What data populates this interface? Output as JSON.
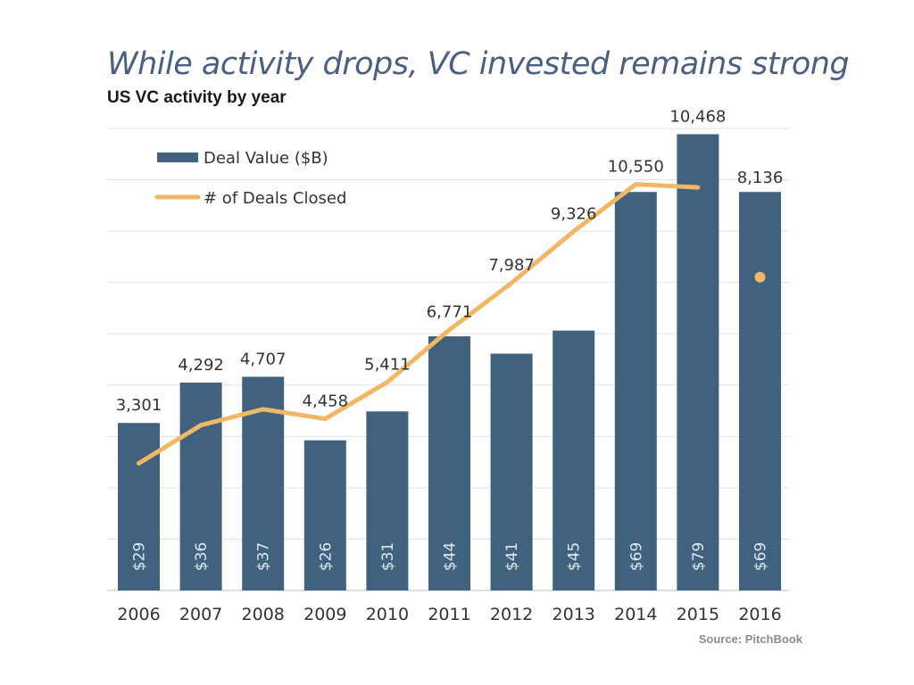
{
  "title": "While activity drops, VC invested remains strong",
  "subtitle": "US VC activity by year",
  "source": "Source: PitchBook",
  "colors": {
    "bar": "#41627f",
    "line": "#f1b765",
    "grid": "#e3e3e3",
    "axis": "#bdbdbd"
  },
  "chart_data": {
    "type": "bar",
    "categories": [
      "2006",
      "2007",
      "2008",
      "2009",
      "2010",
      "2011",
      "2012",
      "2013",
      "2014",
      "2015",
      "2016"
    ],
    "bar_value_labels": [
      "$29",
      "$36",
      "$37",
      "$26",
      "$31",
      "$44",
      "$41",
      "$45",
      "$69",
      "$79",
      "$69"
    ],
    "line_value_labels": [
      "3,301",
      "4,292",
      "4,707",
      "4,458",
      "5,411",
      "6,771",
      "7,987",
      "9,326",
      "10,550",
      "10,468",
      "8,136"
    ],
    "series": [
      {
        "name": "Deal Value ($B)",
        "type": "bar",
        "values": [
          29,
          36,
          37,
          26,
          31,
          44,
          41,
          45,
          69,
          79,
          69
        ]
      },
      {
        "name": "# of Deals Closed",
        "type": "line",
        "values": [
          3301,
          4292,
          4707,
          4458,
          5411,
          6771,
          7987,
          9326,
          10550,
          10468,
          8136
        ],
        "last_point_marker_only": true
      }
    ],
    "bar_axis_range": [
      0,
      80
    ],
    "line_axis_range": [
      0,
      12000
    ],
    "grid": true,
    "legend_position": "top-left"
  }
}
